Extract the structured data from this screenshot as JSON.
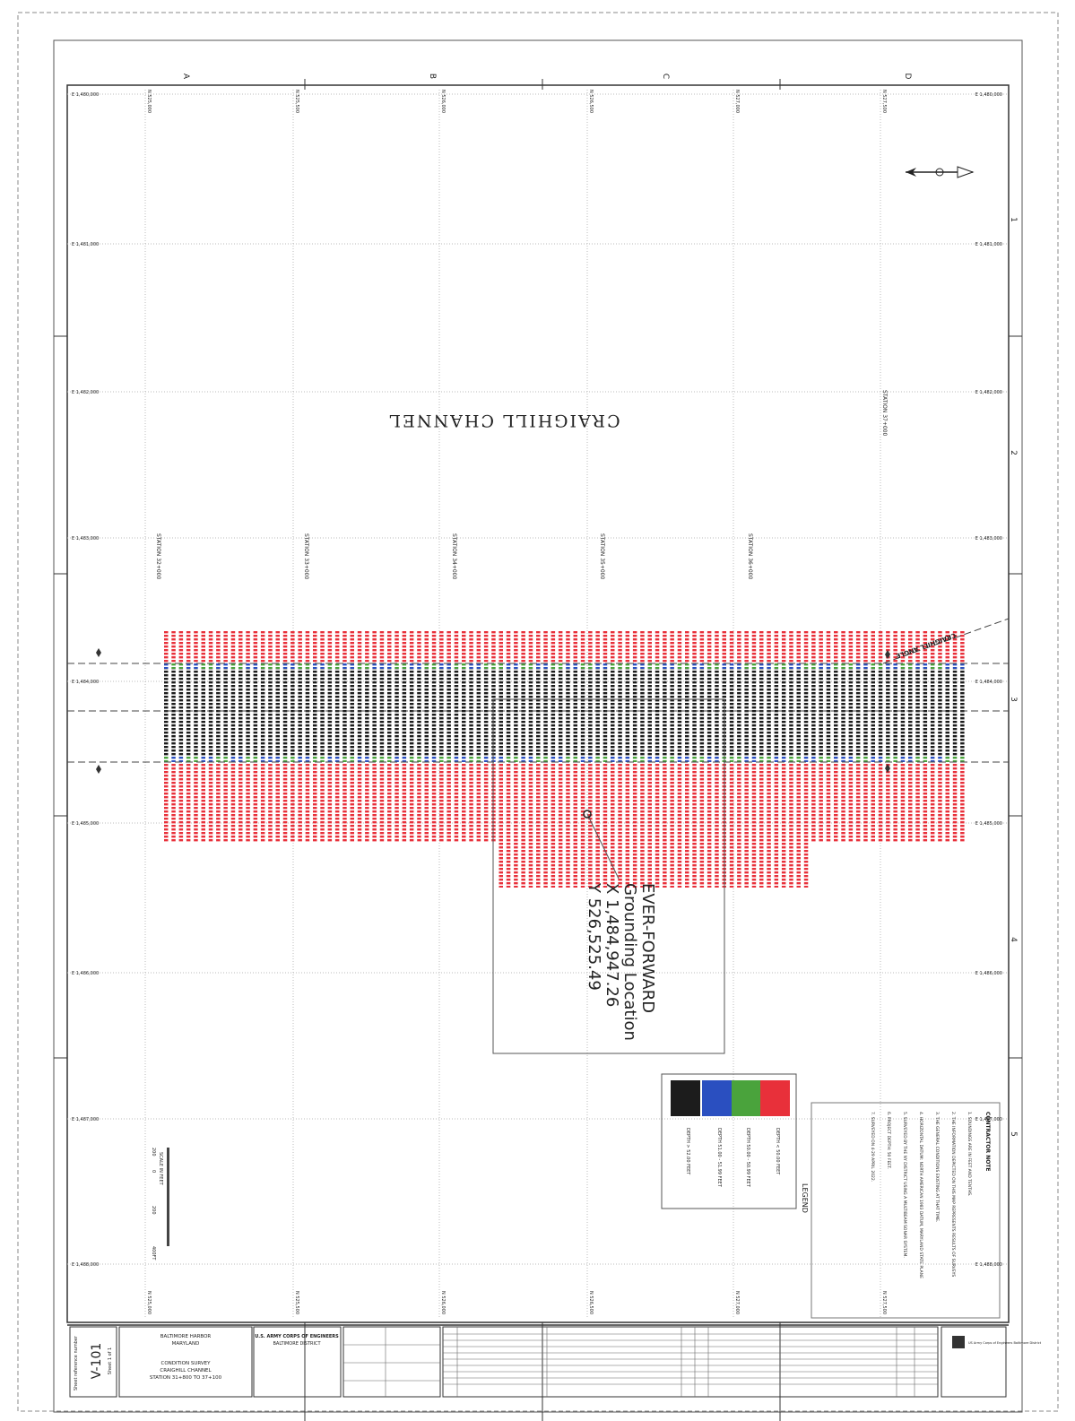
{
  "drawing": {
    "title": "CRAIGHILL CHANNEL",
    "angle_label": "CRAIGHILL ANGLE",
    "columns": [
      "A",
      "B",
      "C",
      "D"
    ],
    "rows": [
      "1",
      "2",
      "3",
      "4",
      "5"
    ],
    "northings": [
      "N 525,000",
      "N 525,500",
      "N 526,000",
      "N 526,500",
      "N 527,000",
      "N 527,500"
    ],
    "eastings": [
      "E 1,480,000",
      "E 1,481,000",
      "E 1,482,000",
      "E 1,483,000",
      "E 1,484,000",
      "E 1,485,000",
      "E 1,486,000",
      "E 1,487,000",
      "E 1,488,000"
    ],
    "stations": [
      "STATION 32+000",
      "STATION 33+000",
      "STATION 34+000",
      "STATION 35+000",
      "STATION 36+000",
      "STATION 37+000"
    ],
    "grounding": {
      "name": "EVER-FORWARD",
      "label": "Grounding Location",
      "x": "X 1,484,947.26",
      "y": "Y 526,525.49"
    },
    "legend": {
      "title": "LEGEND",
      "items": [
        {
          "label": "DEPTH < 50.00 FEET",
          "color": "#e8303a"
        },
        {
          "label": "DEPTH 50.00 - 50.99 FEET",
          "color": "#4aa33c"
        },
        {
          "label": "DEPTH 51.00 - 51.99 FEET",
          "color": "#2a4fc0"
        },
        {
          "label": "DEPTH > 52.00 FEET",
          "color": "#1c1c1c"
        }
      ]
    },
    "scale": {
      "title": "SCALE IN FEET",
      "ticks": [
        "200",
        "0",
        "200",
        "400FT"
      ]
    },
    "notes": {
      "title": "CONTRACTOR NOTE",
      "lines": [
        "1. SOUNDINGS ARE IN FEET AND TENTHS.",
        "2. THE INFORMATION DEPICTED ON THIS MAP REPRESENTS RESULTS OF SURVEYS",
        "3. THE GENERAL CONDITIONS EXISTING AT THAT TIME.",
        "4. HORIZONTAL DATUM: NORTH AMERICAN 1983 DATUM, MARYLAND STATE PLANE",
        "5. SURVEYED BY THE NY DISTRICT USING A MULTIBEAM SONAR SYSTEM.",
        "6. PROJECT DEPTH: 50 FEET.",
        "7. SURVEYED ON 4-29 APRIL 2022."
      ]
    },
    "title_block": {
      "sheet_ref_label": "Sheet reference number",
      "sheet_id": "V-101",
      "sheet_count": "Sheet 1 of 1",
      "project": "BALTIMORE HARBOR",
      "state": "MARYLAND",
      "survey": "CONDITION SURVEY",
      "channel": "CRAIGHILL CHANNEL",
      "range": "STATION 31+800 TO 37+100",
      "agency": "U.S. ARMY CORPS OF ENGINEERS",
      "district": "BALTIMORE DISTRICT",
      "logo": "US Army Corps of Engineers Baltimore District"
    }
  }
}
